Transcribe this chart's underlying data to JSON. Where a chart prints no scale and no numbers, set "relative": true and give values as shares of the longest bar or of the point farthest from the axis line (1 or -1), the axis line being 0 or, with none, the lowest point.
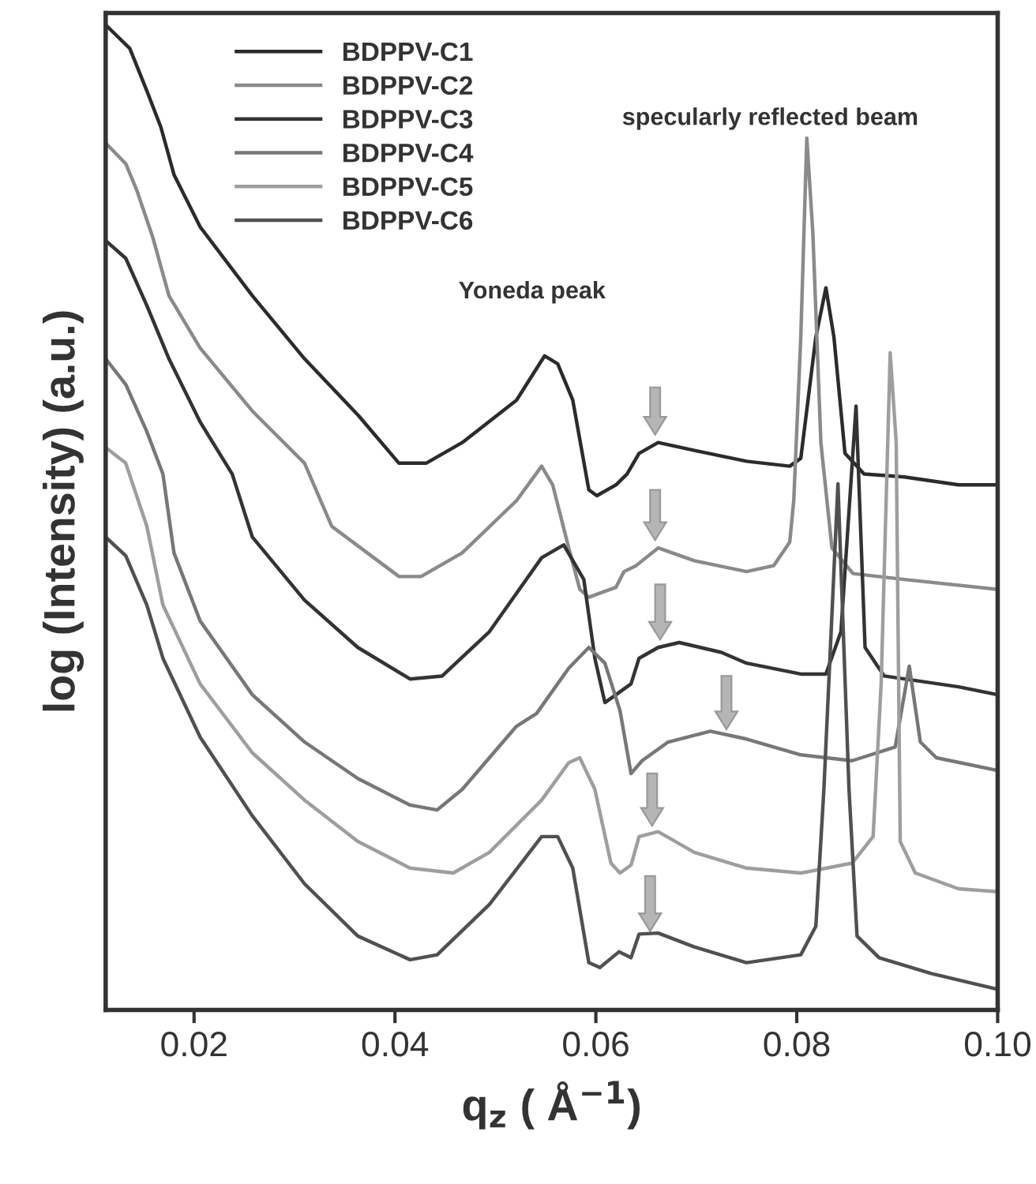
{
  "chart_data": {
    "type": "line",
    "relative": true,
    "xlabel": "q$_{z}$ ( Å$^{−1}$)",
    "ylabel": "log (Intensity) (a.u.)",
    "xlim": [
      0.0112,
      0.1
    ],
    "xticks": [
      0.02,
      0.04,
      0.06,
      0.08,
      {
        "value": 0.1,
        "label": "0.10"
      }
    ],
    "tick_labels": "x",
    "legend": "top left",
    "grid": false,
    "marker": "none",
    "line_style": "solid",
    "annotations": [
      "Yoneda peak",
      "specularly reflected beam"
    ],
    "series": [
      {
        "name": "BDPPV-C1",
        "color": "#2b2b2b",
        "x": [
          0.0112,
          0.0136,
          0.0153,
          0.0167,
          0.018,
          0.0206,
          0.0258,
          0.031,
          0.0364,
          0.0404,
          0.0431,
          0.0467,
          0.0521,
          0.0549,
          0.0562,
          0.0577,
          0.0593,
          0.0601,
          0.062,
          0.0631,
          0.0643,
          0.0662,
          0.0698,
          0.075,
          0.0793,
          0.0804,
          0.0819,
          0.0829,
          0.0837,
          0.0848,
          0.0867,
          0.0907,
          0.0961,
          0.1
        ],
        "values": [
          1.0,
          0.976,
          0.933,
          0.896,
          0.848,
          0.795,
          0.725,
          0.661,
          0.603,
          0.555,
          0.555,
          0.576,
          0.619,
          0.664,
          0.656,
          0.619,
          0.528,
          0.522,
          0.533,
          0.544,
          0.565,
          0.576,
          0.568,
          0.557,
          0.552,
          0.56,
          0.683,
          0.733,
          0.683,
          0.565,
          0.544,
          0.541,
          0.533,
          0.533
        ]
      },
      {
        "name": "BDPPV-C2",
        "color": "#8a8a8a",
        "x": [
          0.0112,
          0.0132,
          0.0143,
          0.0159,
          0.0175,
          0.0206,
          0.0258,
          0.031,
          0.0337,
          0.0404,
          0.0426,
          0.0467,
          0.0521,
          0.0546,
          0.0557,
          0.0573,
          0.0584,
          0.0593,
          0.062,
          0.0628,
          0.064,
          0.0662,
          0.0698,
          0.075,
          0.0777,
          0.0793,
          0.0797,
          0.0804,
          0.081,
          0.0816,
          0.0824,
          0.0835,
          0.0856,
          0.0907,
          0.1
        ],
        "values": [
          0.88,
          0.859,
          0.832,
          0.784,
          0.725,
          0.672,
          0.608,
          0.555,
          0.491,
          0.44,
          0.44,
          0.464,
          0.517,
          0.552,
          0.533,
          0.469,
          0.427,
          0.419,
          0.429,
          0.445,
          0.451,
          0.469,
          0.456,
          0.445,
          0.451,
          0.475,
          0.517,
          0.683,
          0.885,
          0.789,
          0.576,
          0.469,
          0.443,
          0.437,
          0.427
        ]
      },
      {
        "name": "BDPPV-C3",
        "color": "#333333",
        "x": [
          0.0112,
          0.0132,
          0.0153,
          0.0175,
          0.0206,
          0.0238,
          0.0258,
          0.031,
          0.0363,
          0.0415,
          0.0447,
          0.0494,
          0.0546,
          0.0568,
          0.0588,
          0.0599,
          0.0609,
          0.062,
          0.0635,
          0.0643,
          0.0662,
          0.0683,
          0.0725,
          0.075,
          0.0804,
          0.0829,
          0.0844,
          0.0859,
          0.0868,
          0.0887,
          0.0961,
          0.1
        ],
        "values": [
          0.781,
          0.763,
          0.715,
          0.661,
          0.597,
          0.544,
          0.48,
          0.416,
          0.368,
          0.336,
          0.339,
          0.384,
          0.459,
          0.472,
          0.437,
          0.357,
          0.312,
          0.32,
          0.331,
          0.357,
          0.368,
          0.373,
          0.363,
          0.352,
          0.341,
          0.341,
          0.384,
          0.613,
          0.368,
          0.339,
          0.328,
          0.32
        ]
      },
      {
        "name": "BDPPV-C4",
        "color": "#777777",
        "x": [
          0.0112,
          0.0132,
          0.0153,
          0.0169,
          0.018,
          0.0206,
          0.0258,
          0.031,
          0.0363,
          0.0415,
          0.0442,
          0.0467,
          0.0521,
          0.0541,
          0.0573,
          0.0593,
          0.0609,
          0.0624,
          0.0635,
          0.0646,
          0.0672,
          0.0714,
          0.075,
          0.0804,
          0.0855,
          0.0898,
          0.0912,
          0.0923,
          0.0939,
          0.1
        ],
        "values": [
          0.661,
          0.635,
          0.587,
          0.544,
          0.464,
          0.395,
          0.32,
          0.272,
          0.235,
          0.208,
          0.203,
          0.224,
          0.288,
          0.301,
          0.347,
          0.368,
          0.352,
          0.304,
          0.24,
          0.253,
          0.272,
          0.283,
          0.275,
          0.259,
          0.253,
          0.267,
          0.349,
          0.272,
          0.256,
          0.243
        ]
      },
      {
        "name": "BDPPV-C5",
        "color": "#9e9e9e",
        "x": [
          0.0112,
          0.0132,
          0.0153,
          0.0169,
          0.0206,
          0.0258,
          0.031,
          0.0363,
          0.0415,
          0.0458,
          0.0494,
          0.0546,
          0.0573,
          0.0584,
          0.0599,
          0.0615,
          0.0624,
          0.0635,
          0.0643,
          0.0662,
          0.0698,
          0.075,
          0.0804,
          0.0855,
          0.0876,
          0.0884,
          0.0893,
          0.0899,
          0.0903,
          0.0918,
          0.0961,
          0.1
        ],
        "values": [
          0.571,
          0.555,
          0.491,
          0.411,
          0.331,
          0.261,
          0.213,
          0.171,
          0.144,
          0.139,
          0.16,
          0.213,
          0.251,
          0.256,
          0.224,
          0.149,
          0.139,
          0.147,
          0.176,
          0.181,
          0.16,
          0.144,
          0.139,
          0.149,
          0.176,
          0.331,
          0.667,
          0.576,
          0.171,
          0.139,
          0.123,
          0.12
        ]
      },
      {
        "name": "BDPPV-C6",
        "color": "#505050",
        "x": [
          0.0112,
          0.0132,
          0.0153,
          0.0169,
          0.0206,
          0.0258,
          0.031,
          0.0363,
          0.0415,
          0.0442,
          0.0494,
          0.0546,
          0.0562,
          0.0577,
          0.0593,
          0.0604,
          0.0623,
          0.0635,
          0.0643,
          0.0662,
          0.0698,
          0.075,
          0.0804,
          0.0819,
          0.0827,
          0.0841,
          0.0852,
          0.086,
          0.0882,
          0.0934,
          0.1
        ],
        "values": [
          0.48,
          0.461,
          0.411,
          0.357,
          0.277,
          0.197,
          0.128,
          0.075,
          0.051,
          0.056,
          0.107,
          0.176,
          0.176,
          0.144,
          0.048,
          0.043,
          0.059,
          0.053,
          0.077,
          0.078,
          0.064,
          0.048,
          0.056,
          0.085,
          0.224,
          0.534,
          0.224,
          0.075,
          0.053,
          0.037,
          0.021
        ]
      }
    ]
  }
}
